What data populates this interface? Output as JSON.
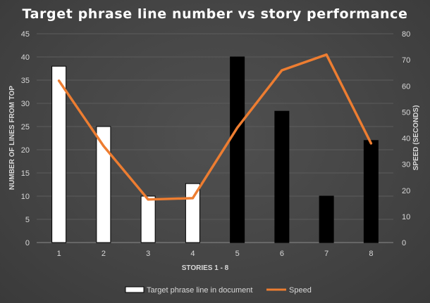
{
  "chart_data": {
    "type": "bar",
    "title": "Target phrase line number vs story performance",
    "xlabel": "STORIES 1 - 8",
    "ylabel": "NUMBER OF LINES FROM TOP",
    "y2label": "SPEED (SECONDS)",
    "categories": [
      "1",
      "2",
      "3",
      "4",
      "5",
      "6",
      "7",
      "8"
    ],
    "ylim": [
      0,
      45
    ],
    "y2lim": [
      0,
      80
    ],
    "yticks": [
      "0",
      "5",
      "10",
      "15",
      "20",
      "25",
      "30",
      "35",
      "40",
      "45"
    ],
    "y2ticks": [
      "0",
      "10",
      "20",
      "30",
      "40",
      "50",
      "60",
      "70",
      "80"
    ],
    "grid": true,
    "legend_position": "bottom",
    "series": [
      {
        "name": "Target phrase line in document",
        "type": "bar",
        "axis": "left",
        "values": [
          38,
          25,
          10,
          12.7,
          40,
          28.3,
          10,
          22
        ],
        "bar_colors": [
          "#ffffff",
          "#ffffff",
          "#ffffff",
          "#ffffff",
          "#000000",
          "#000000",
          "#000000",
          "#000000"
        ],
        "legend_color": "#ffffff"
      },
      {
        "name": "Speed",
        "type": "line",
        "axis": "right",
        "values": [
          62,
          37,
          16.5,
          17,
          44,
          66,
          72,
          38
        ],
        "color": "#ed7d31"
      }
    ]
  }
}
